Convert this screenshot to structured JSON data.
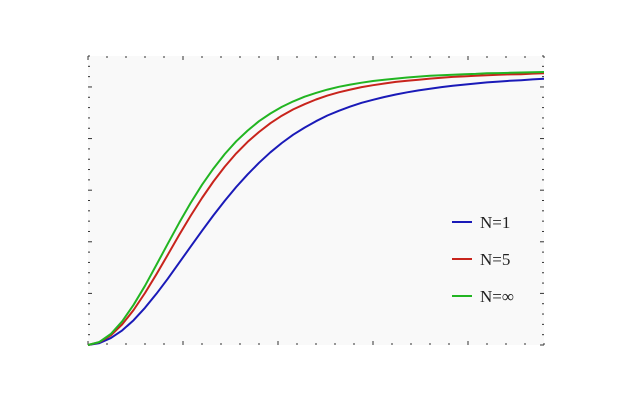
{
  "chart_data": {
    "type": "line",
    "title": "",
    "xlabel": "",
    "ylabel": "",
    "xlim": [
      0,
      10
    ],
    "ylim": [
      0,
      1.05
    ],
    "grid": false,
    "legend_position": "right-center",
    "x": [
      0,
      0.25,
      0.5,
      0.75,
      1,
      1.25,
      1.5,
      1.75,
      2,
      2.25,
      2.5,
      2.75,
      3,
      3.25,
      3.5,
      3.75,
      4,
      4.25,
      4.5,
      4.75,
      5,
      5.25,
      5.5,
      5.75,
      6,
      6.25,
      6.5,
      6.75,
      7,
      7.25,
      7.5,
      7.75,
      8,
      8.25,
      8.5,
      8.75,
      9,
      9.25,
      9.5,
      9.75,
      10
    ],
    "series": [
      {
        "name": "N=1",
        "color": "#1a1ab8",
        "values": [
          0.0,
          0.007,
          0.025,
          0.053,
          0.09,
          0.135,
          0.186,
          0.241,
          0.299,
          0.357,
          0.415,
          0.471,
          0.524,
          0.574,
          0.62,
          0.662,
          0.7,
          0.734,
          0.764,
          0.79,
          0.813,
          0.834,
          0.851,
          0.866,
          0.88,
          0.891,
          0.901,
          0.91,
          0.918,
          0.925,
          0.931,
          0.937,
          0.942,
          0.946,
          0.95,
          0.954,
          0.957,
          0.96,
          0.962,
          0.965,
          0.967
        ]
      },
      {
        "name": "N=5",
        "color": "#c8241c",
        "values": [
          0.0,
          0.01,
          0.035,
          0.075,
          0.127,
          0.189,
          0.257,
          0.328,
          0.4,
          0.469,
          0.534,
          0.594,
          0.648,
          0.696,
          0.738,
          0.774,
          0.806,
          0.833,
          0.856,
          0.875,
          0.892,
          0.906,
          0.918,
          0.928,
          0.937,
          0.944,
          0.95,
          0.956,
          0.96,
          0.964,
          0.968,
          0.971,
          0.974,
          0.976,
          0.978,
          0.98,
          0.982,
          0.983,
          0.984,
          0.986,
          0.987
        ]
      },
      {
        "name": "N=∞",
        "color": "#22b522",
        "values": [
          0.0,
          0.011,
          0.04,
          0.086,
          0.146,
          0.215,
          0.291,
          0.368,
          0.444,
          0.516,
          0.582,
          0.641,
          0.694,
          0.74,
          0.779,
          0.813,
          0.841,
          0.865,
          0.885,
          0.902,
          0.916,
          0.928,
          0.938,
          0.946,
          0.953,
          0.959,
          0.964,
          0.968,
          0.972,
          0.975,
          0.978,
          0.98,
          0.982,
          0.984,
          0.985,
          0.987,
          0.988,
          0.989,
          0.99,
          0.991,
          0.992
        ]
      }
    ]
  }
}
